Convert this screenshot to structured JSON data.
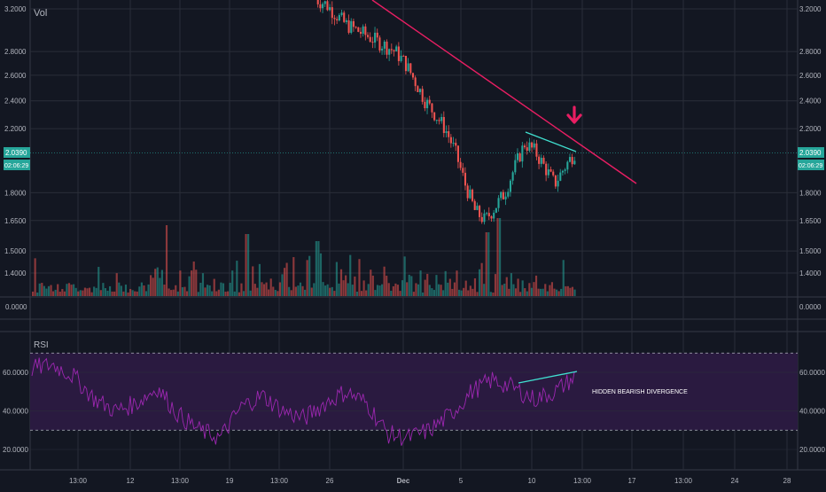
{
  "chart_data": {
    "type": "candlestick",
    "panels": {
      "price": {
        "y_ticks": [
          "3.2000",
          "2.8000",
          "2.6000",
          "2.4000",
          "2.2000",
          "1.8000",
          "1.6500",
          "1.5000",
          "1.4000"
        ],
        "y_tick_values": [
          3.2,
          2.8,
          2.6,
          2.4,
          2.2,
          1.8,
          1.65,
          1.5,
          1.4
        ],
        "last_price_label": "2.0390",
        "last_price": 2.039,
        "countdown_label": "02:06:29",
        "volume_label": "Vol",
        "scale": "log"
      },
      "volume_zero": {
        "label": "0.0000"
      },
      "rsi": {
        "title": "RSI",
        "y_ticks": [
          "60.0000",
          "40.0000",
          "20.0000"
        ],
        "y_tick_values": [
          60,
          40,
          20
        ],
        "bands": [
          70,
          30
        ],
        "annotation": "HIDDEN BEARISH DIVERGENCE"
      }
    },
    "x_ticks": [
      "13:00",
      "12",
      "13:00",
      "19",
      "13:00",
      "26",
      "Dec",
      "5",
      "10",
      "13:00",
      "17",
      "13:00",
      "24",
      "28"
    ],
    "price_series_approx": [
      3.3,
      3.25,
      3.15,
      3.05,
      3.0,
      2.95,
      2.9,
      2.85,
      2.8,
      2.7,
      2.55,
      2.4,
      2.3,
      2.2,
      2.05,
      1.85,
      1.7,
      1.65,
      1.72,
      1.8,
      1.95,
      2.1,
      2.05,
      1.95,
      1.85,
      1.95,
      2.04
    ],
    "trendline": {
      "color": "#e91e63",
      "description": "descending resistance"
    },
    "divergence_lines_color": "#40e0d0",
    "rsi_series_approx": [
      62,
      64,
      58,
      46,
      40,
      44,
      52,
      38,
      30,
      26,
      42,
      48,
      40,
      36,
      44,
      50,
      44,
      28,
      26,
      30,
      38,
      50,
      56,
      52,
      46,
      50,
      58
    ],
    "colors": {
      "background": "#131722",
      "grid": "#2a2e39",
      "up": "#26a69a",
      "down": "#ef5350",
      "rsi_line": "#9c27b0",
      "rsi_band_fill": "#2a1a40",
      "arrow": "#e91e63"
    }
  }
}
